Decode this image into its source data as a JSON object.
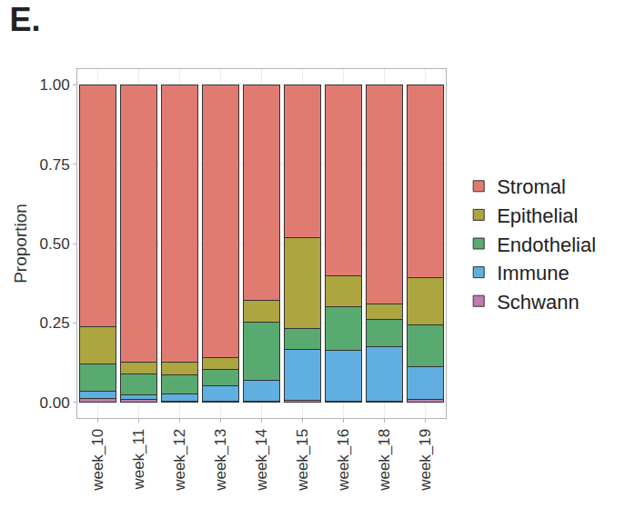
{
  "chart_data": {
    "type": "bar",
    "title": "E.",
    "y_label": "Proportion",
    "stacked": true,
    "grid": true,
    "legend": "right",
    "categories": [
      "week_10",
      "week_11",
      "week_12",
      "week_13",
      "week_14",
      "week_15",
      "week_16",
      "week_18",
      "week_19"
    ],
    "series": [
      {
        "name": "Stromal",
        "color": "#E07B72",
        "values": [
          0.763,
          0.873,
          0.873,
          0.86,
          0.678,
          0.482,
          0.603,
          0.69,
          0.607
        ]
      },
      {
        "name": "Epithelial",
        "color": "#ADA53F",
        "values": [
          0.117,
          0.037,
          0.042,
          0.037,
          0.069,
          0.285,
          0.097,
          0.05,
          0.15
        ]
      },
      {
        "name": "Endothelial",
        "color": "#59AA70",
        "values": [
          0.085,
          0.068,
          0.058,
          0.05,
          0.185,
          0.068,
          0.137,
          0.085,
          0.13
        ]
      },
      {
        "name": "Immune",
        "color": "#61AEE0",
        "values": [
          0.023,
          0.014,
          0.024,
          0.051,
          0.066,
          0.16,
          0.161,
          0.173,
          0.103
        ]
      },
      {
        "name": "Schwann",
        "color": "#C27BB2",
        "values": [
          0.012,
          0.008,
          0.003,
          0.002,
          0.002,
          0.005,
          0.002,
          0.002,
          0.01
        ]
      }
    ],
    "ylim": [
      -0.05,
      1.05
    ],
    "yticks": [
      {
        "value": 0,
        "label": "0.00"
      },
      {
        "value": 0.25,
        "label": "0.25"
      },
      {
        "value": 0.5,
        "label": "0.50"
      },
      {
        "value": 0.75,
        "label": "0.75"
      },
      {
        "value": 1,
        "label": "1.00"
      }
    ]
  }
}
